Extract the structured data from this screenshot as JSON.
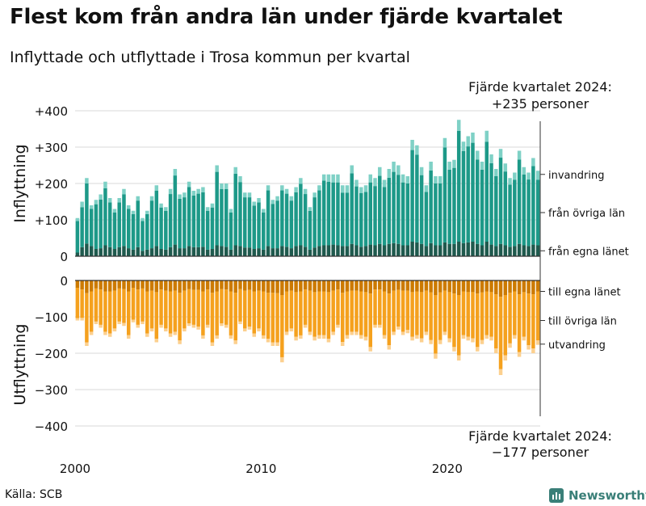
{
  "title": "Flest kom från andra län under fjärde kvartalet",
  "subtitle": "Inflyttade och utflyttade i Trosa kommun per kvartal",
  "source": "Källa: SCB",
  "brand": "Newsworthy",
  "colors": {
    "in_own": "#1f5a4e",
    "in_other": "#1d9988",
    "in_abroad": "#7fd1c6",
    "out_own": "#cc7a00",
    "out_other": "#f5a11e",
    "out_abroad": "#fcd08f",
    "grid": "#d9d9d9",
    "axis": "#333333"
  },
  "chart_data": {
    "type": "bar",
    "stacked": true,
    "x_range": [
      2000,
      2024.75
    ],
    "x_ticks": [
      "2000",
      "2010",
      "2020"
    ],
    "panels": [
      {
        "name": "Inflyttning",
        "ylabel": "Inflyttning",
        "ylim": [
          0,
          400
        ],
        "y_ticks": [
          "+400",
          "+300",
          "+200",
          "+100",
          "0"
        ],
        "y_tick_values": [
          400,
          300,
          200,
          100,
          0
        ],
        "series_names": [
          "från egna länet",
          "från övriga län",
          "invandring"
        ],
        "annotation": "Fjärde kvartalet 2024:\n+235 personer",
        "annotation_lines": [
          "Fjärde kvartalet 2024:",
          "+235 personer"
        ],
        "series_labels": [
          {
            "label": "invandring",
            "value": 225
          },
          {
            "label": "från övriga län",
            "value": 120
          },
          {
            "label": "från egna länet",
            "value": 15
          }
        ]
      },
      {
        "name": "Utflyttning",
        "ylabel": "Utflyttning",
        "ylim": [
          -400,
          0
        ],
        "y_ticks": [
          "0",
          "−100",
          "−200",
          "−300",
          "−400"
        ],
        "y_tick_values": [
          0,
          -100,
          -200,
          -300,
          -400
        ],
        "series_names": [
          "till egna länet",
          "till övriga län",
          "utvandring"
        ],
        "annotation": "Fjärde kvartalet 2024:\n−177 personer",
        "annotation_lines": [
          "Fjärde kvartalet 2024:",
          "−177 personer"
        ],
        "series_labels": [
          {
            "label": "till egna länet",
            "value": -30
          },
          {
            "label": "till övriga län",
            "value": -110
          },
          {
            "label": "utvandring",
            "value": -175
          }
        ]
      }
    ],
    "series": [
      {
        "name": "inflyttning_totalt",
        "values": [
          105,
          150,
          215,
          140,
          155,
          170,
          205,
          160,
          130,
          160,
          185,
          140,
          125,
          165,
          105,
          125,
          165,
          195,
          145,
          135,
          185,
          240,
          170,
          175,
          205,
          180,
          185,
          190,
          135,
          145,
          250,
          200,
          200,
          130,
          245,
          220,
          175,
          175,
          150,
          160,
          130,
          195,
          155,
          165,
          195,
          185,
          165,
          190,
          215,
          185,
          135,
          175,
          195,
          225,
          225,
          225,
          225,
          195,
          195,
          250,
          210,
          190,
          195,
          225,
          215,
          245,
          210,
          240,
          260,
          250,
          225,
          220,
          320,
          305,
          245,
          195,
          260,
          220,
          220,
          325,
          260,
          265,
          375,
          315,
          330,
          340,
          290,
          260,
          345,
          280,
          240,
          295,
          255,
          215,
          230,
          290,
          245,
          230,
          270,
          235
        ]
      },
      {
        "name": "inflyttning_egna_lanet",
        "values": [
          10,
          25,
          35,
          28,
          20,
          22,
          30,
          25,
          20,
          25,
          28,
          22,
          18,
          25,
          15,
          18,
          22,
          28,
          20,
          18,
          25,
          32,
          22,
          22,
          28,
          25,
          25,
          26,
          18,
          20,
          30,
          28,
          26,
          18,
          30,
          28,
          24,
          24,
          20,
          22,
          18,
          28,
          22,
          22,
          28,
          26,
          22,
          28,
          30,
          26,
          18,
          24,
          28,
          30,
          30,
          32,
          30,
          28,
          28,
          34,
          30,
          26,
          28,
          32,
          30,
          34,
          30,
          34,
          36,
          34,
          30,
          30,
          40,
          38,
          34,
          28,
          36,
          30,
          30,
          38,
          34,
          34,
          40,
          36,
          38,
          40,
          34,
          30,
          40,
          32,
          28,
          34,
          30,
          26,
          28,
          34,
          30,
          28,
          32,
          30
        ]
      },
      {
        "name": "inflyttning_invandring",
        "values": [
          8,
          15,
          15,
          10,
          12,
          14,
          18,
          12,
          10,
          12,
          15,
          10,
          9,
          12,
          8,
          9,
          12,
          15,
          11,
          10,
          14,
          18,
          12,
          13,
          15,
          13,
          13,
          14,
          10,
          11,
          18,
          15,
          15,
          10,
          18,
          16,
          13,
          13,
          11,
          12,
          10,
          14,
          11,
          12,
          14,
          13,
          12,
          14,
          16,
          14,
          10,
          13,
          14,
          17,
          20,
          22,
          22,
          20,
          20,
          22,
          18,
          16,
          18,
          22,
          22,
          24,
          20,
          24,
          28,
          26,
          22,
          20,
          28,
          26,
          22,
          18,
          24,
          20,
          20,
          26,
          22,
          22,
          30,
          26,
          28,
          28,
          24,
          22,
          30,
          24,
          20,
          24,
          22,
          18,
          20,
          24,
          20,
          19,
          22,
          25
        ]
      },
      {
        "name": "utflyttning_totalt",
        "values": [
          -110,
          -110,
          -180,
          -150,
          -120,
          -130,
          -150,
          -155,
          -140,
          -120,
          -125,
          -160,
          -115,
          -130,
          -120,
          -155,
          -140,
          -170,
          -130,
          -140,
          -155,
          -150,
          -175,
          -140,
          -125,
          -130,
          -135,
          -160,
          -130,
          -180,
          -160,
          -125,
          -130,
          -160,
          -175,
          -120,
          -140,
          -135,
          -155,
          -140,
          -160,
          -170,
          -180,
          -180,
          -225,
          -150,
          -140,
          -165,
          -160,
          -130,
          -150,
          -165,
          -160,
          -160,
          -170,
          -150,
          -130,
          -180,
          -160,
          -150,
          -150,
          -160,
          -165,
          -195,
          -130,
          -130,
          -160,
          -190,
          -150,
          -135,
          -150,
          -145,
          -165,
          -160,
          -170,
          -150,
          -175,
          -215,
          -175,
          -150,
          -170,
          -195,
          -220,
          -160,
          -165,
          -170,
          -195,
          -175,
          -160,
          -165,
          -200,
          -260,
          -220,
          -185,
          -160,
          -210,
          -165,
          -190,
          -200,
          -177
        ]
      },
      {
        "name": "utflyttning_egna_lanet",
        "values": [
          -20,
          -25,
          -35,
          -30,
          -22,
          -25,
          -30,
          -30,
          -28,
          -22,
          -24,
          -30,
          -20,
          -25,
          -22,
          -30,
          -28,
          -32,
          -25,
          -28,
          -30,
          -28,
          -34,
          -28,
          -24,
          -26,
          -26,
          -30,
          -25,
          -34,
          -30,
          -24,
          -25,
          -30,
          -34,
          -24,
          -28,
          -26,
          -30,
          -28,
          -30,
          -34,
          -34,
          -35,
          -40,
          -30,
          -28,
          -32,
          -30,
          -25,
          -28,
          -32,
          -30,
          -30,
          -32,
          -28,
          -25,
          -34,
          -30,
          -28,
          -28,
          -30,
          -32,
          -36,
          -25,
          -25,
          -30,
          -36,
          -28,
          -26,
          -28,
          -28,
          -32,
          -30,
          -32,
          -28,
          -33,
          -40,
          -33,
          -28,
          -32,
          -36,
          -40,
          -30,
          -32,
          -32,
          -36,
          -33,
          -30,
          -32,
          -38,
          -45,
          -40,
          -34,
          -30,
          -38,
          -32,
          -36,
          -38,
          -30
        ]
      },
      {
        "name": "utflyttning_utvandring",
        "values": [
          -6,
          -7,
          -10,
          -9,
          -7,
          -8,
          -9,
          -9,
          -8,
          -7,
          -8,
          -10,
          -7,
          -8,
          -7,
          -9,
          -8,
          -10,
          -8,
          -8,
          -9,
          -9,
          -10,
          -8,
          -7,
          -8,
          -8,
          -9,
          -8,
          -10,
          -9,
          -7,
          -8,
          -9,
          -10,
          -7,
          -8,
          -8,
          -9,
          -8,
          -9,
          -10,
          -10,
          -10,
          -14,
          -9,
          -8,
          -10,
          -9,
          -8,
          -9,
          -10,
          -10,
          -10,
          -10,
          -9,
          -8,
          -11,
          -10,
          -9,
          -9,
          -10,
          -10,
          -12,
          -8,
          -8,
          -10,
          -12,
          -9,
          -8,
          -9,
          -9,
          -10,
          -10,
          -11,
          -9,
          -11,
          -14,
          -11,
          -9,
          -11,
          -12,
          -14,
          -10,
          -10,
          -11,
          -12,
          -11,
          -10,
          -10,
          -13,
          -16,
          -14,
          -12,
          -10,
          -13,
          -10,
          -12,
          -13,
          -12
        ]
      }
    ]
  }
}
